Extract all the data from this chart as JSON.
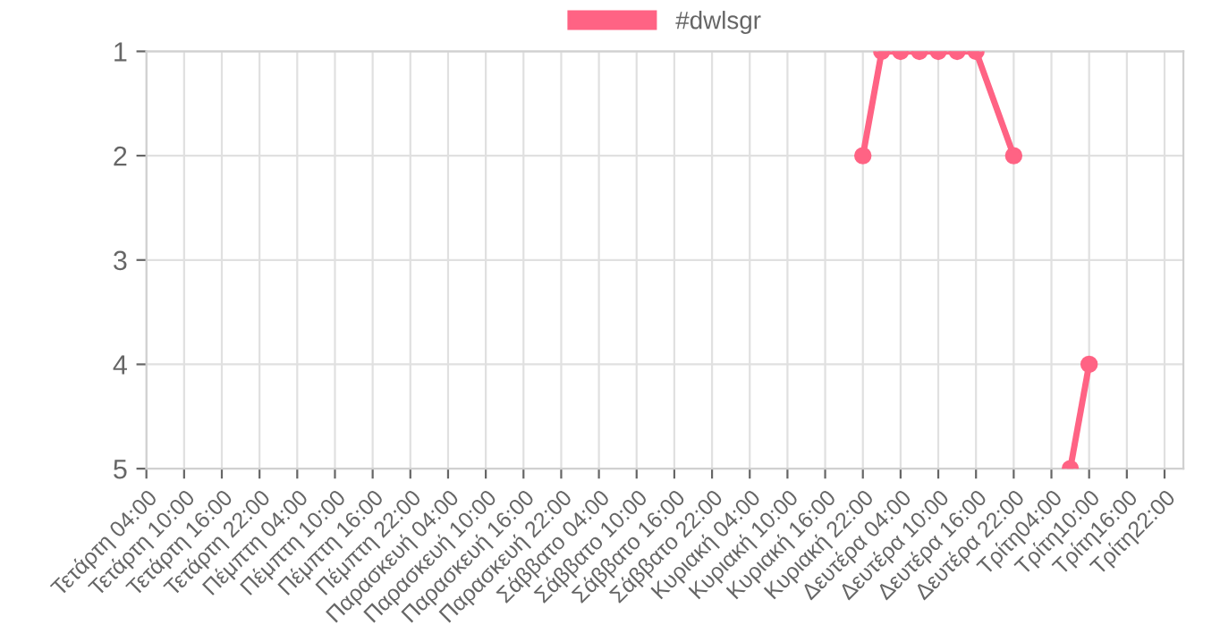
{
  "chart_data": {
    "type": "line",
    "categories": [
      "Τετάρτη 04:00",
      null,
      "Τετάρτη 10:00",
      null,
      "Τετάρτη 16:00",
      null,
      "Τετάρτη 22:00",
      null,
      "Πέμπτη 04:00",
      null,
      "Πέμπτη 10:00",
      null,
      "Πέμπτη 16:00",
      null,
      "Πέμπτη 22:00",
      null,
      "Παρασκευή 04:00",
      null,
      "Παρασκευή 10:00",
      null,
      "Παρασκευή 16:00",
      null,
      "Παρασκευή 22:00",
      null,
      "Σάββατο 04:00",
      null,
      "Σάββατο 10:00",
      null,
      "Σάββατο 16:00",
      null,
      "Σάββατο 22:00",
      null,
      "Κυριακή 04:00",
      null,
      "Κυριακή 10:00",
      null,
      "Κυριακή 16:00",
      null,
      "Κυριακή 22:00",
      null,
      "Δευτέρα 04:00",
      null,
      "Δευτέρα 10:00",
      null,
      "Δευτέρα 16:00",
      null,
      "Δευτέρα 22:00",
      null,
      "Τρίτη04:00",
      null,
      "Τρίτη10:00",
      null,
      "Τρίτη16:00",
      null,
      "Τρίτη22:00",
      null
    ],
    "series": [
      {
        "name": "#dwlsgr",
        "color": "#ff6384",
        "values": [
          null,
          null,
          null,
          null,
          null,
          null,
          null,
          null,
          null,
          null,
          null,
          null,
          null,
          null,
          null,
          null,
          null,
          null,
          null,
          null,
          null,
          null,
          null,
          null,
          null,
          null,
          null,
          null,
          null,
          null,
          null,
          null,
          null,
          null,
          null,
          null,
          null,
          null,
          2,
          1,
          1,
          1,
          1,
          1,
          1,
          null,
          2,
          null,
          null,
          null,
          null,
          null,
          null,
          null,
          null,
          null
        ]
      },
      {
        "color": "#ff6384",
        "values": [
          null,
          null,
          null,
          null,
          null,
          null,
          null,
          null,
          null,
          null,
          null,
          null,
          null,
          null,
          null,
          null,
          null,
          null,
          null,
          null,
          null,
          null,
          null,
          null,
          null,
          null,
          null,
          null,
          null,
          null,
          null,
          null,
          null,
          null,
          null,
          null,
          null,
          null,
          null,
          null,
          null,
          null,
          null,
          null,
          null,
          null,
          null,
          null,
          null,
          5,
          4,
          null,
          null,
          null,
          null,
          null
        ]
      }
    ],
    "ylim": [
      5,
      1
    ],
    "yticks": [
      1,
      2,
      3,
      4,
      5
    ],
    "grid": true,
    "legend": "top",
    "marker": "circle",
    "line_style": "solid"
  }
}
